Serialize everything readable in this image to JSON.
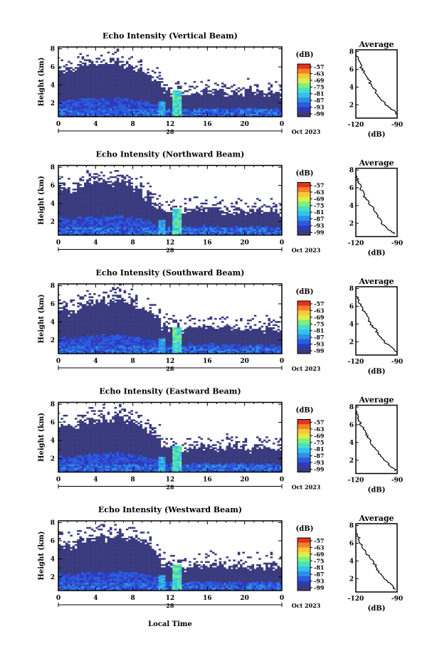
{
  "figure": {
    "xlabel": "Local Time",
    "ylabel": "Height (km)",
    "date_label": "Oct 2023",
    "day_label": "28",
    "colorbar_unit": "(dB)",
    "avg_title": "Average",
    "avg_xlabel": "(dB)"
  },
  "colors": {
    "background_echo": "#3a3b7e",
    "scale": [
      "#3a3b7e",
      "#2f3ab8",
      "#2a5ce0",
      "#2f8fe6",
      "#33c2ee",
      "#45e0c8",
      "#7ff07a",
      "#d8f04a",
      "#fbc83a",
      "#f6812b",
      "#e5321f"
    ]
  },
  "chart_data": [
    {
      "type": "heatmap",
      "title": "Echo Intensity (Vertical Beam)",
      "x_ticks": [
        "0",
        "4",
        "8",
        "12",
        "16",
        "20",
        "0"
      ],
      "y_ticks": [
        "2",
        "4",
        "6",
        "8"
      ],
      "xlim": [
        0,
        24
      ],
      "ylim": [
        0.5,
        8.2
      ],
      "colorbar_ticks": [
        "-57",
        "-63",
        "-69",
        "-75",
        "-81",
        "-87",
        "-93",
        "-99"
      ],
      "avg_x_ticks": [
        "-120",
        "-90"
      ],
      "avg_y_ticks": [
        "2",
        "4",
        "6",
        "8"
      ],
      "avg_profile": {
        "height": [
          0.8,
          1.5,
          2.2,
          3,
          3.8,
          4.6,
          5.4,
          6.2,
          7,
          7.8
        ],
        "db": [
          -89,
          -94,
          -99,
          -104,
          -107,
          -110,
          -113,
          -116,
          -118,
          -120
        ]
      },
      "echo_top": [
        5.8,
        6.0,
        6.2,
        6.4,
        6.5,
        6.3,
        6.6,
        6.2,
        5.8,
        5.2,
        4.6,
        3.5,
        3.2,
        3.0,
        3.3,
        3.4,
        3.3,
        3.3,
        3.2,
        3.3,
        3.4,
        3.3,
        3.2,
        3.3
      ]
    },
    {
      "type": "heatmap",
      "title": "Echo Intensity (Northward Beam)",
      "x_ticks": [
        "0",
        "4",
        "8",
        "12",
        "16",
        "20",
        "0"
      ],
      "y_ticks": [
        "2",
        "4",
        "6",
        "8"
      ],
      "xlim": [
        0,
        24
      ],
      "ylim": [
        0.5,
        8.2
      ],
      "colorbar_ticks": [
        "-57",
        "-63",
        "-69",
        "-75",
        "-81",
        "-87",
        "-93",
        "-99"
      ],
      "avg_x_ticks": [
        "-120",
        "-90"
      ],
      "avg_y_ticks": [
        "2",
        "4",
        "6",
        "8"
      ],
      "avg_profile": {
        "height": [
          0.8,
          1.5,
          2.2,
          3,
          3.8,
          4.6,
          5.4,
          6.2,
          7,
          7.8
        ],
        "db": [
          -92,
          -98,
          -102,
          -105,
          -108,
          -112,
          -115,
          -117,
          -119,
          -121
        ]
      },
      "echo_top": [
        6.0,
        5.7,
        6.2,
        6.5,
        6.6,
        6.4,
        6.7,
        6.2,
        5.8,
        5.0,
        4.0,
        3.4,
        3.2,
        3.3,
        3.4,
        3.5,
        3.4,
        3.3,
        3.3,
        3.4,
        3.3,
        3.4,
        3.3,
        3.2
      ]
    },
    {
      "type": "heatmap",
      "title": "Echo Intensity (Southward Beam)",
      "x_ticks": [
        "0",
        "4",
        "8",
        "12",
        "16",
        "20",
        "0"
      ],
      "y_ticks": [
        "2",
        "4",
        "6",
        "8"
      ],
      "xlim": [
        0,
        24
      ],
      "ylim": [
        0.5,
        8.2
      ],
      "colorbar_ticks": [
        "-57",
        "-63",
        "-69",
        "-75",
        "-81",
        "-87",
        "-93",
        "-99"
      ],
      "avg_x_ticks": [
        "-120",
        "-90"
      ],
      "avg_y_ticks": [
        "2",
        "4",
        "6",
        "8"
      ],
      "avg_profile": {
        "height": [
          0.8,
          1.5,
          2.2,
          3,
          3.8,
          4.6,
          5.4,
          6.2,
          7,
          7.8
        ],
        "db": [
          -90,
          -96,
          -100,
          -104,
          -108,
          -111,
          -114,
          -117,
          -119,
          -122
        ]
      },
      "echo_top": [
        5.5,
        5.3,
        5.9,
        6.2,
        6.5,
        6.4,
        6.7,
        6.3,
        5.9,
        5.4,
        4.8,
        3.6,
        3.4,
        3.3,
        3.5,
        3.6,
        3.5,
        3.4,
        3.5,
        3.4,
        3.3,
        3.4,
        3.3,
        3.2
      ]
    },
    {
      "type": "heatmap",
      "title": "Echo Intensity (Eastward Beam)",
      "x_ticks": [
        "0",
        "4",
        "8",
        "12",
        "16",
        "20",
        "0"
      ],
      "y_ticks": [
        "2",
        "4",
        "6",
        "8"
      ],
      "xlim": [
        0,
        24
      ],
      "ylim": [
        0.5,
        8.2
      ],
      "colorbar_ticks": [
        "-57",
        "-63",
        "-69",
        "-75",
        "-81",
        "-87",
        "-93",
        "-99"
      ],
      "avg_x_ticks": [
        "-120",
        "-90"
      ],
      "avg_y_ticks": [
        "2",
        "4",
        "6",
        "8"
      ],
      "avg_profile": {
        "height": [
          0.8,
          1.5,
          2.2,
          3,
          3.8,
          4.6,
          5.4,
          6.2,
          7,
          7.8
        ],
        "db": [
          -91,
          -96,
          -101,
          -104,
          -108,
          -111,
          -114,
          -117,
          -119,
          -121
        ]
      },
      "echo_top": [
        5.6,
        5.4,
        6.0,
        6.4,
        6.6,
        6.5,
        6.8,
        6.4,
        6.0,
        5.4,
        4.6,
        3.4,
        3.2,
        3.1,
        3.3,
        3.5,
        3.4,
        3.3,
        3.3,
        3.3,
        3.2,
        3.3,
        3.2,
        3.1
      ]
    },
    {
      "type": "heatmap",
      "title": "Echo Intensity (Westward Beam)",
      "x_ticks": [
        "0",
        "4",
        "8",
        "12",
        "16",
        "20",
        "0"
      ],
      "y_ticks": [
        "2",
        "4",
        "6",
        "8"
      ],
      "xlim": [
        0,
        24
      ],
      "ylim": [
        0.5,
        8.2
      ],
      "colorbar_ticks": [
        "-57",
        "-63",
        "-69",
        "-75",
        "-81",
        "-87",
        "-93",
        "-99"
      ],
      "avg_x_ticks": [
        "-120",
        "-90"
      ],
      "avg_y_ticks": [
        "2",
        "4",
        "6",
        "8"
      ],
      "avg_profile": {
        "height": [
          0.8,
          1.5,
          2.2,
          3,
          3.8,
          4.6,
          5.4,
          6.2,
          7,
          7.8
        ],
        "db": [
          -91,
          -96,
          -100,
          -104,
          -107,
          -111,
          -114,
          -117,
          -119,
          -121
        ]
      },
      "echo_top": [
        5.8,
        5.5,
        6.1,
        6.5,
        6.6,
        6.4,
        6.8,
        6.5,
        6.1,
        5.6,
        4.8,
        3.6,
        3.4,
        3.2,
        3.4,
        3.5,
        3.6,
        3.4,
        3.3,
        3.4,
        3.3,
        3.2,
        3.3,
        3.2
      ]
    }
  ]
}
